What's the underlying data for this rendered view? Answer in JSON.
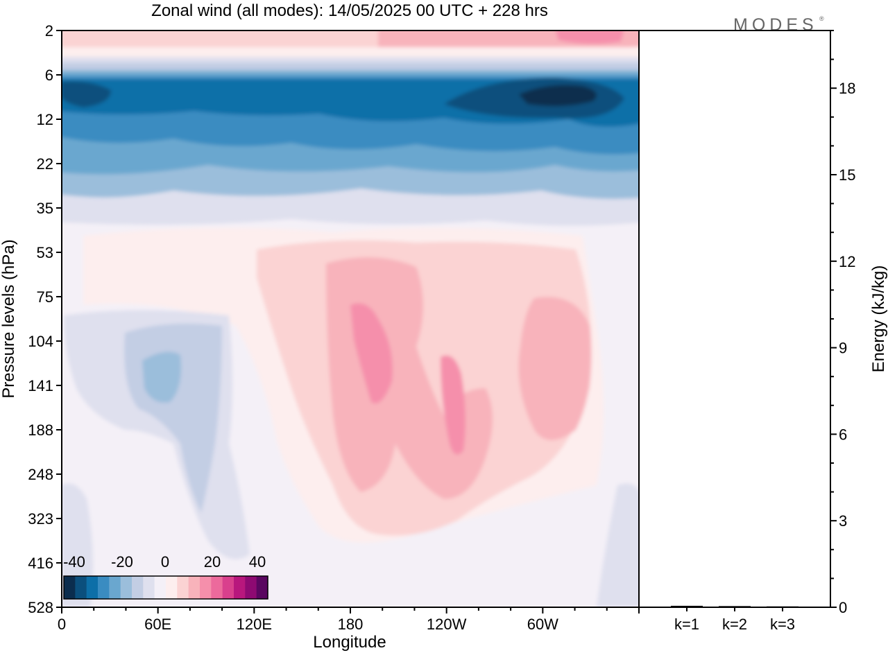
{
  "chart_data": [
    {
      "type": "heatmap",
      "title": "Zonal wind (all modes):  14/05/2025  00 UTC  + 228 hrs",
      "xlabel": "Longitude",
      "ylabel": "Pressure levels (hPa)",
      "x_ticks": [
        "0",
        "60E",
        "120E",
        "180",
        "120W",
        "60W"
      ],
      "x_tick_degrees": [
        0,
        60,
        120,
        180,
        240,
        300
      ],
      "xlim": [
        0,
        360
      ],
      "y_ticks": [
        "2",
        "6",
        "12",
        "22",
        "35",
        "53",
        "75",
        "104",
        "141",
        "188",
        "248",
        "323",
        "416",
        "528"
      ],
      "y_scale": "model levels (top 2 hPa, bottom 528 hPa)",
      "colorbar": {
        "tick_labels": [
          "-40",
          "-20",
          "0",
          "20",
          "40"
        ],
        "colors": [
          "#0b2d4e",
          "#0b4f7d",
          "#0d6fa8",
          "#3a8cc1",
          "#6aa7cf",
          "#9bbedb",
          "#c3cee4",
          "#dfe0ee",
          "#f4f0f7",
          "#fdeeee",
          "#fbd3d3",
          "#f8b3bb",
          "#f58fab",
          "#ec6a9c",
          "#d9408d",
          "#b8177d",
          "#8e0a72",
          "#5a0760"
        ]
      },
      "wind_bands": [
        {
          "top_hPa": 2,
          "bottom_hPa": 3,
          "description_value": 10
        },
        {
          "top_hPa": 3,
          "bottom_hPa": 5,
          "description_value": 0
        },
        {
          "top_hPa": 6,
          "bottom_hPa": 12,
          "description_value": -30
        },
        {
          "top_hPa": 12,
          "bottom_hPa": 22,
          "description_value": -20
        },
        {
          "top_hPa": 22,
          "bottom_hPa": 35,
          "description_value": -10
        },
        {
          "top_hPa": 35,
          "bottom_hPa": 528,
          "description_value": 0
        }
      ]
    },
    {
      "type": "bar",
      "ylabel": "Energy (kJ/kg)",
      "categories": [
        "k=1",
        "k=2",
        "k=3"
      ],
      "values": [
        0.05,
        0.04,
        0.03
      ],
      "ylim": [
        0,
        20
      ],
      "y_ticks": [
        "0",
        "3",
        "6",
        "9",
        "12",
        "15",
        "18"
      ]
    }
  ],
  "watermark": "MODES"
}
